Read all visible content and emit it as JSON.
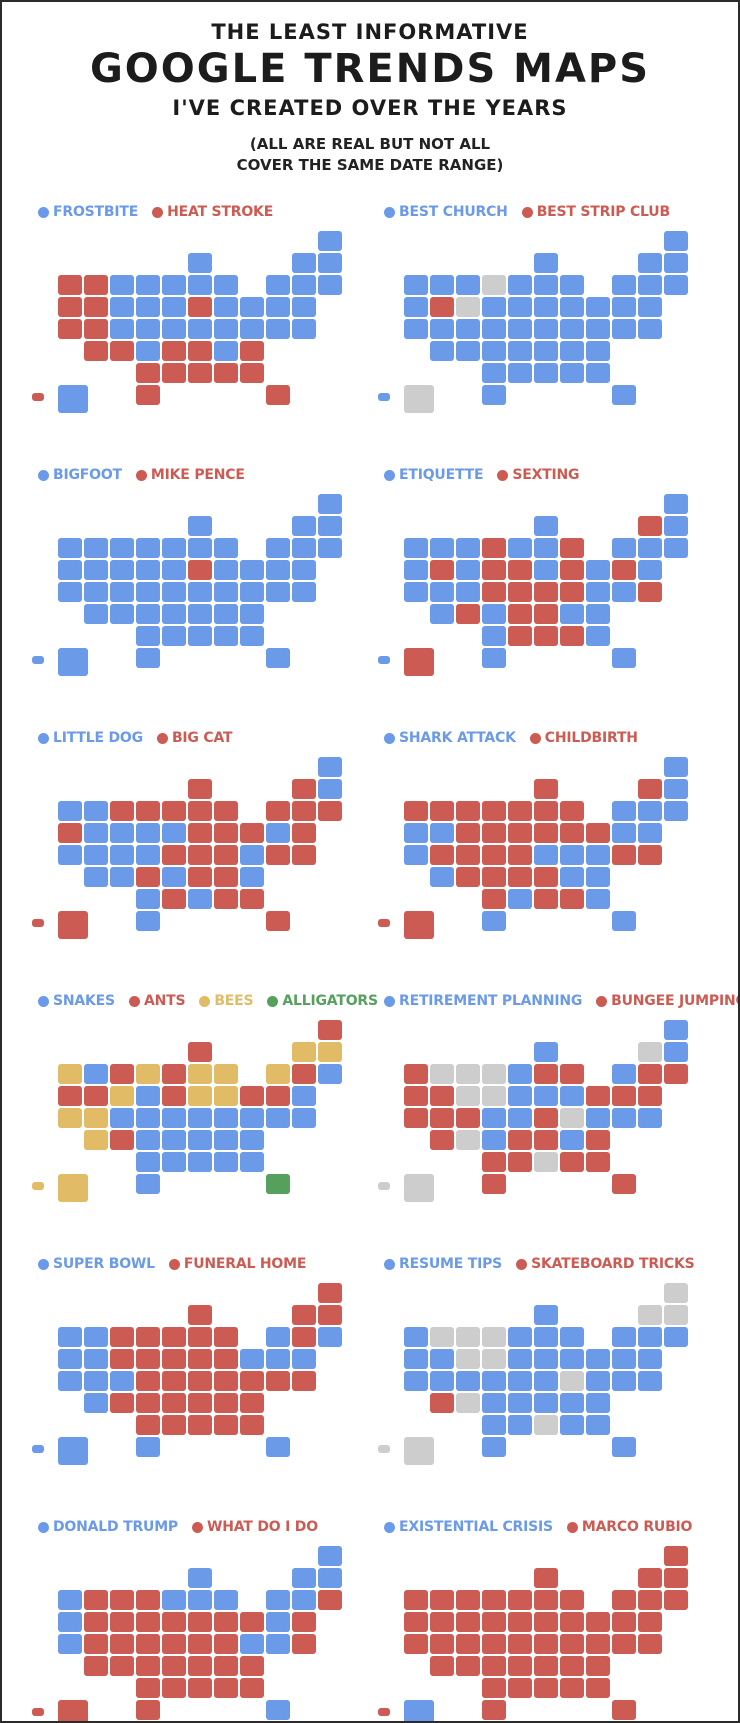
{
  "title": {
    "line1": "THE LEAST INFORMATIVE",
    "line2": "GOOGLE TRENDS MAPS",
    "line3": "I'VE CREATED OVER THE YEARS",
    "note_line1": "(ALL ARE REAL BUT NOT ALL",
    "note_line2": "COVER THE SAME DATE RANGE)"
  },
  "palette": {
    "blue": "#6A9AE8",
    "red": "#CC5B53",
    "yellow": "#E1BB66",
    "green": "#55A05C",
    "gray": "#CDCDCD",
    "ink": "#1C1C1C"
  },
  "chart_data": [
    {
      "type": "choropleth-us-map",
      "legend": [
        {
          "label": "FROSTBITE",
          "color": "blue"
        },
        {
          "label": "HEAT STROKE",
          "color": "red"
        }
      ],
      "default_color": "blue",
      "overrides": {
        "red": [
          "WA",
          "OR",
          "CA",
          "NV",
          "ID",
          "UT",
          "AZ",
          "NM",
          "TX",
          "OK",
          "AR",
          "LA",
          "MS",
          "AL",
          "GA",
          "FL",
          "SC",
          "TN",
          "IN",
          "HI"
        ]
      }
    },
    {
      "type": "choropleth-us-map",
      "legend": [
        {
          "label": "BEST CHURCH",
          "color": "blue"
        },
        {
          "label": "BEST STRIP CLUB",
          "color": "red"
        }
      ],
      "default_color": "blue",
      "overrides": {
        "red": [
          "NV"
        ],
        "gray": [
          "ND",
          "WY",
          "AK"
        ]
      }
    },
    {
      "type": "choropleth-us-map",
      "legend": [
        {
          "label": "BIGFOOT",
          "color": "blue"
        },
        {
          "label": "MIKE PENCE",
          "color": "red"
        }
      ],
      "default_color": "blue",
      "overrides": {
        "red": [
          "IN"
        ]
      }
    },
    {
      "type": "choropleth-us-map",
      "legend": [
        {
          "label": "ETIQUETTE",
          "color": "blue"
        },
        {
          "label": "SEXTING",
          "color": "red"
        }
      ],
      "default_color": "blue",
      "overrides": {
        "red": [
          "NV",
          "NM",
          "ND",
          "SD",
          "NE",
          "IA",
          "MO",
          "AR",
          "LA",
          "MS",
          "AL",
          "OH",
          "MI",
          "WV",
          "KY",
          "TN",
          "VT",
          "NJ",
          "DE",
          "AK"
        ]
      }
    },
    {
      "type": "choropleth-us-map",
      "legend": [
        {
          "label": "LITTLE DOG",
          "color": "blue"
        },
        {
          "label": "BIG CAT",
          "color": "red"
        }
      ],
      "default_color": "blue",
      "overrides": {
        "red": [
          "OR",
          "MT",
          "ND",
          "KS",
          "MN",
          "MO",
          "LA",
          "WI",
          "IL",
          "IN",
          "OH",
          "MI",
          "KY",
          "TN",
          "AL",
          "GA",
          "FL",
          "WV",
          "NC",
          "PA",
          "NY",
          "MD",
          "DE",
          "VT",
          "MA",
          "CT",
          "RI",
          "AK",
          "HI"
        ]
      }
    },
    {
      "type": "choropleth-us-map",
      "legend": [
        {
          "label": "SHARK ATTACK",
          "color": "blue"
        },
        {
          "label": "CHILDBIRTH",
          "color": "red"
        }
      ],
      "default_color": "red",
      "overrides": {
        "blue": [
          "OR",
          "CA",
          "NV",
          "AZ",
          "TX",
          "LA",
          "KY",
          "GA",
          "FL",
          "WV",
          "VA",
          "NC",
          "SC",
          "NY",
          "NJ",
          "NH",
          "ME",
          "MA",
          "CT",
          "RI"
        ]
      }
    },
    {
      "type": "choropleth-us-map",
      "legend": [
        {
          "label": "SNAKES",
          "color": "blue"
        },
        {
          "label": "ANTS",
          "color": "red"
        },
        {
          "label": "BEES",
          "color": "yellow"
        },
        {
          "label": "ALLIGATORS",
          "color": "green"
        }
      ],
      "default_color": "blue",
      "overrides": {
        "red": [
          "OR",
          "NV",
          "MT",
          "NM",
          "MN",
          "IA",
          "WI",
          "PA",
          "NJ",
          "ME",
          "MA"
        ],
        "yellow": [
          "WA",
          "CA",
          "WY",
          "UT",
          "AZ",
          "ND",
          "IL",
          "IN",
          "OH",
          "MI",
          "NY",
          "VT",
          "NH",
          "AK",
          "HI"
        ],
        "green": [
          "FL"
        ]
      }
    },
    {
      "type": "choropleth-us-map",
      "legend": [
        {
          "label": "RETIREMENT PLANNING",
          "color": "blue"
        },
        {
          "label": "BUNGEE JUMPING",
          "color": "red"
        }
      ],
      "default_color": "blue",
      "overrides": {
        "red": [
          "WA",
          "OR",
          "CA",
          "NV",
          "UT",
          "CO",
          "AZ",
          "OK",
          "TX",
          "AR",
          "LA",
          "IL",
          "MI",
          "KY",
          "TN",
          "AL",
          "GA",
          "FL",
          "SC",
          "PA",
          "NJ",
          "MA",
          "CT",
          "RI"
        ],
        "gray": [
          "ID",
          "MT",
          "WY",
          "NM",
          "ND",
          "SD",
          "MS",
          "WV",
          "VT",
          "AK",
          "HI"
        ]
      }
    },
    {
      "type": "choropleth-us-map",
      "legend": [
        {
          "label": "SUPER BOWL",
          "color": "blue"
        },
        {
          "label": "FUNERAL HOME",
          "color": "red"
        }
      ],
      "default_color": "red",
      "overrides": {
        "blue": [
          "WA",
          "OR",
          "CA",
          "NV",
          "ID",
          "UT",
          "CO",
          "AZ",
          "TX",
          "FL",
          "PA",
          "NY",
          "NJ",
          "CT",
          "RI",
          "AK",
          "HI"
        ]
      }
    },
    {
      "type": "choropleth-us-map",
      "legend": [
        {
          "label": "RESUME TIPS",
          "color": "blue"
        },
        {
          "label": "SKATEBOARD TRICKS",
          "color": "red"
        }
      ],
      "default_color": "blue",
      "overrides": {
        "red": [
          "AZ"
        ],
        "gray": [
          "ID",
          "MT",
          "WY",
          "NM",
          "ND",
          "SD",
          "MS",
          "WV",
          "VT",
          "NH",
          "ME",
          "AK",
          "HI"
        ]
      }
    },
    {
      "type": "choropleth-us-map",
      "legend": [
        {
          "label": "DONALD TRUMP",
          "color": "blue"
        },
        {
          "label": "WHAT DO I DO",
          "color": "red"
        }
      ],
      "default_color": "red",
      "overrides": {
        "blue": [
          "WA",
          "OR",
          "CA",
          "MN",
          "WI",
          "IL",
          "MI",
          "FL",
          "VA",
          "NY",
          "NJ",
          "MD",
          "VT",
          "NH",
          "ME",
          "MA"
        ]
      }
    },
    {
      "type": "choropleth-us-map",
      "legend": [
        {
          "label": "EXISTENTIAL CRISIS",
          "color": "blue"
        },
        {
          "label": "MARCO RUBIO",
          "color": "red"
        }
      ],
      "default_color": "red",
      "overrides": {
        "blue": [
          "AK"
        ]
      }
    }
  ]
}
